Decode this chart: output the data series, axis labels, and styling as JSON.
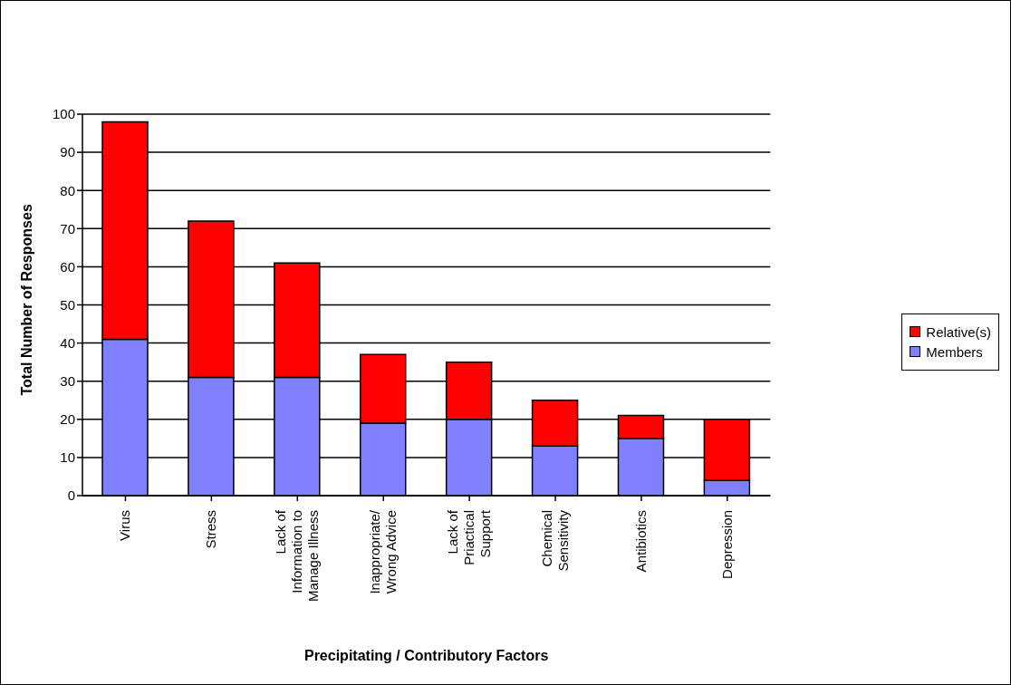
{
  "chart_data": {
    "type": "bar",
    "stacked": true,
    "xlabel": "Precipitating / Contributory Factors",
    "ylabel": "Total Number of Responses",
    "categories": [
      "Virus",
      "Stress",
      "Lack of Information to Manage Illness",
      "Inappropriate/ Wrong Advice",
      "Lack of Priactical Support",
      "Chemical Sensitivity",
      "Antibiotics",
      "Depression"
    ],
    "series": [
      {
        "name": "Members",
        "color": "#8080ff",
        "values": [
          41,
          31,
          31,
          19,
          20,
          13,
          15,
          4
        ]
      },
      {
        "name": "Relative(s)",
        "color": "#ff0000",
        "values": [
          57,
          41,
          30,
          18,
          15,
          12,
          6,
          16
        ]
      }
    ],
    "ylim": [
      0,
      100
    ],
    "yticks": [
      0,
      10,
      20,
      30,
      40,
      50,
      60,
      70,
      80,
      90,
      100
    ],
    "grid": "y",
    "legend": "right"
  }
}
